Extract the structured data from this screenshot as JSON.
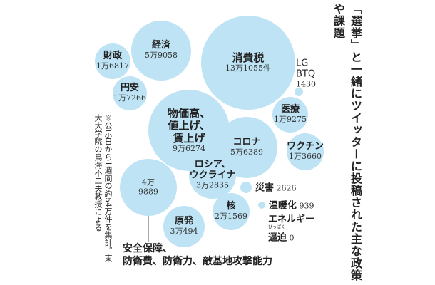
{
  "title": "「選挙」と一緒にツイッターに投稿された主な政策や課題",
  "note": "※公示日から1週間の約54万件を集計。東大大学院の鳥海不二夫教授による",
  "annotation": "安全保障、\n防衛費、防衛力、敵基地攻撃能力",
  "colors": {
    "bubble": "#bde3f5"
  },
  "chart_data": {
    "type": "bubble",
    "title": "「選挙」と一緒にツイッターに投稿された主な政策や課題",
    "unit": "件",
    "items": [
      {
        "name": "消費税",
        "value": 131055,
        "label": "13万1055件"
      },
      {
        "name": "物価高、\n値上げ、\n賃上げ",
        "value": 96274,
        "label": "9万6274"
      },
      {
        "name": "経済",
        "value": 59058,
        "label": "5万9058"
      },
      {
        "name": "コロナ",
        "value": 56389,
        "label": "5万6389"
      },
      {
        "name": "",
        "value": 49889,
        "label": "4万\n9889"
      },
      {
        "name": "ロシア、\nウクライナ",
        "value": 32835,
        "label": "3万2835"
      },
      {
        "name": "原発",
        "value": 30494,
        "label": "3万494"
      },
      {
        "name": "核",
        "value": 21569,
        "label": "2万1569"
      },
      {
        "name": "医療",
        "value": 19275,
        "label": "1万9275"
      },
      {
        "name": "円安",
        "value": 17266,
        "label": "1万7266"
      },
      {
        "name": "財政",
        "value": 16817,
        "label": "1万6817"
      },
      {
        "name": "ワクチン",
        "value": 13660,
        "label": "1万3660"
      },
      {
        "name": "災害",
        "value": 2626,
        "label": "2626"
      },
      {
        "name": "LG\nBTQ",
        "value": 1430,
        "label": "1430"
      },
      {
        "name": "温暖化",
        "value": 939,
        "label": "939"
      },
      {
        "name": "エネルギー\n逼迫",
        "value": 0,
        "label": "0",
        "ruby": "ひっぱく"
      }
    ]
  }
}
